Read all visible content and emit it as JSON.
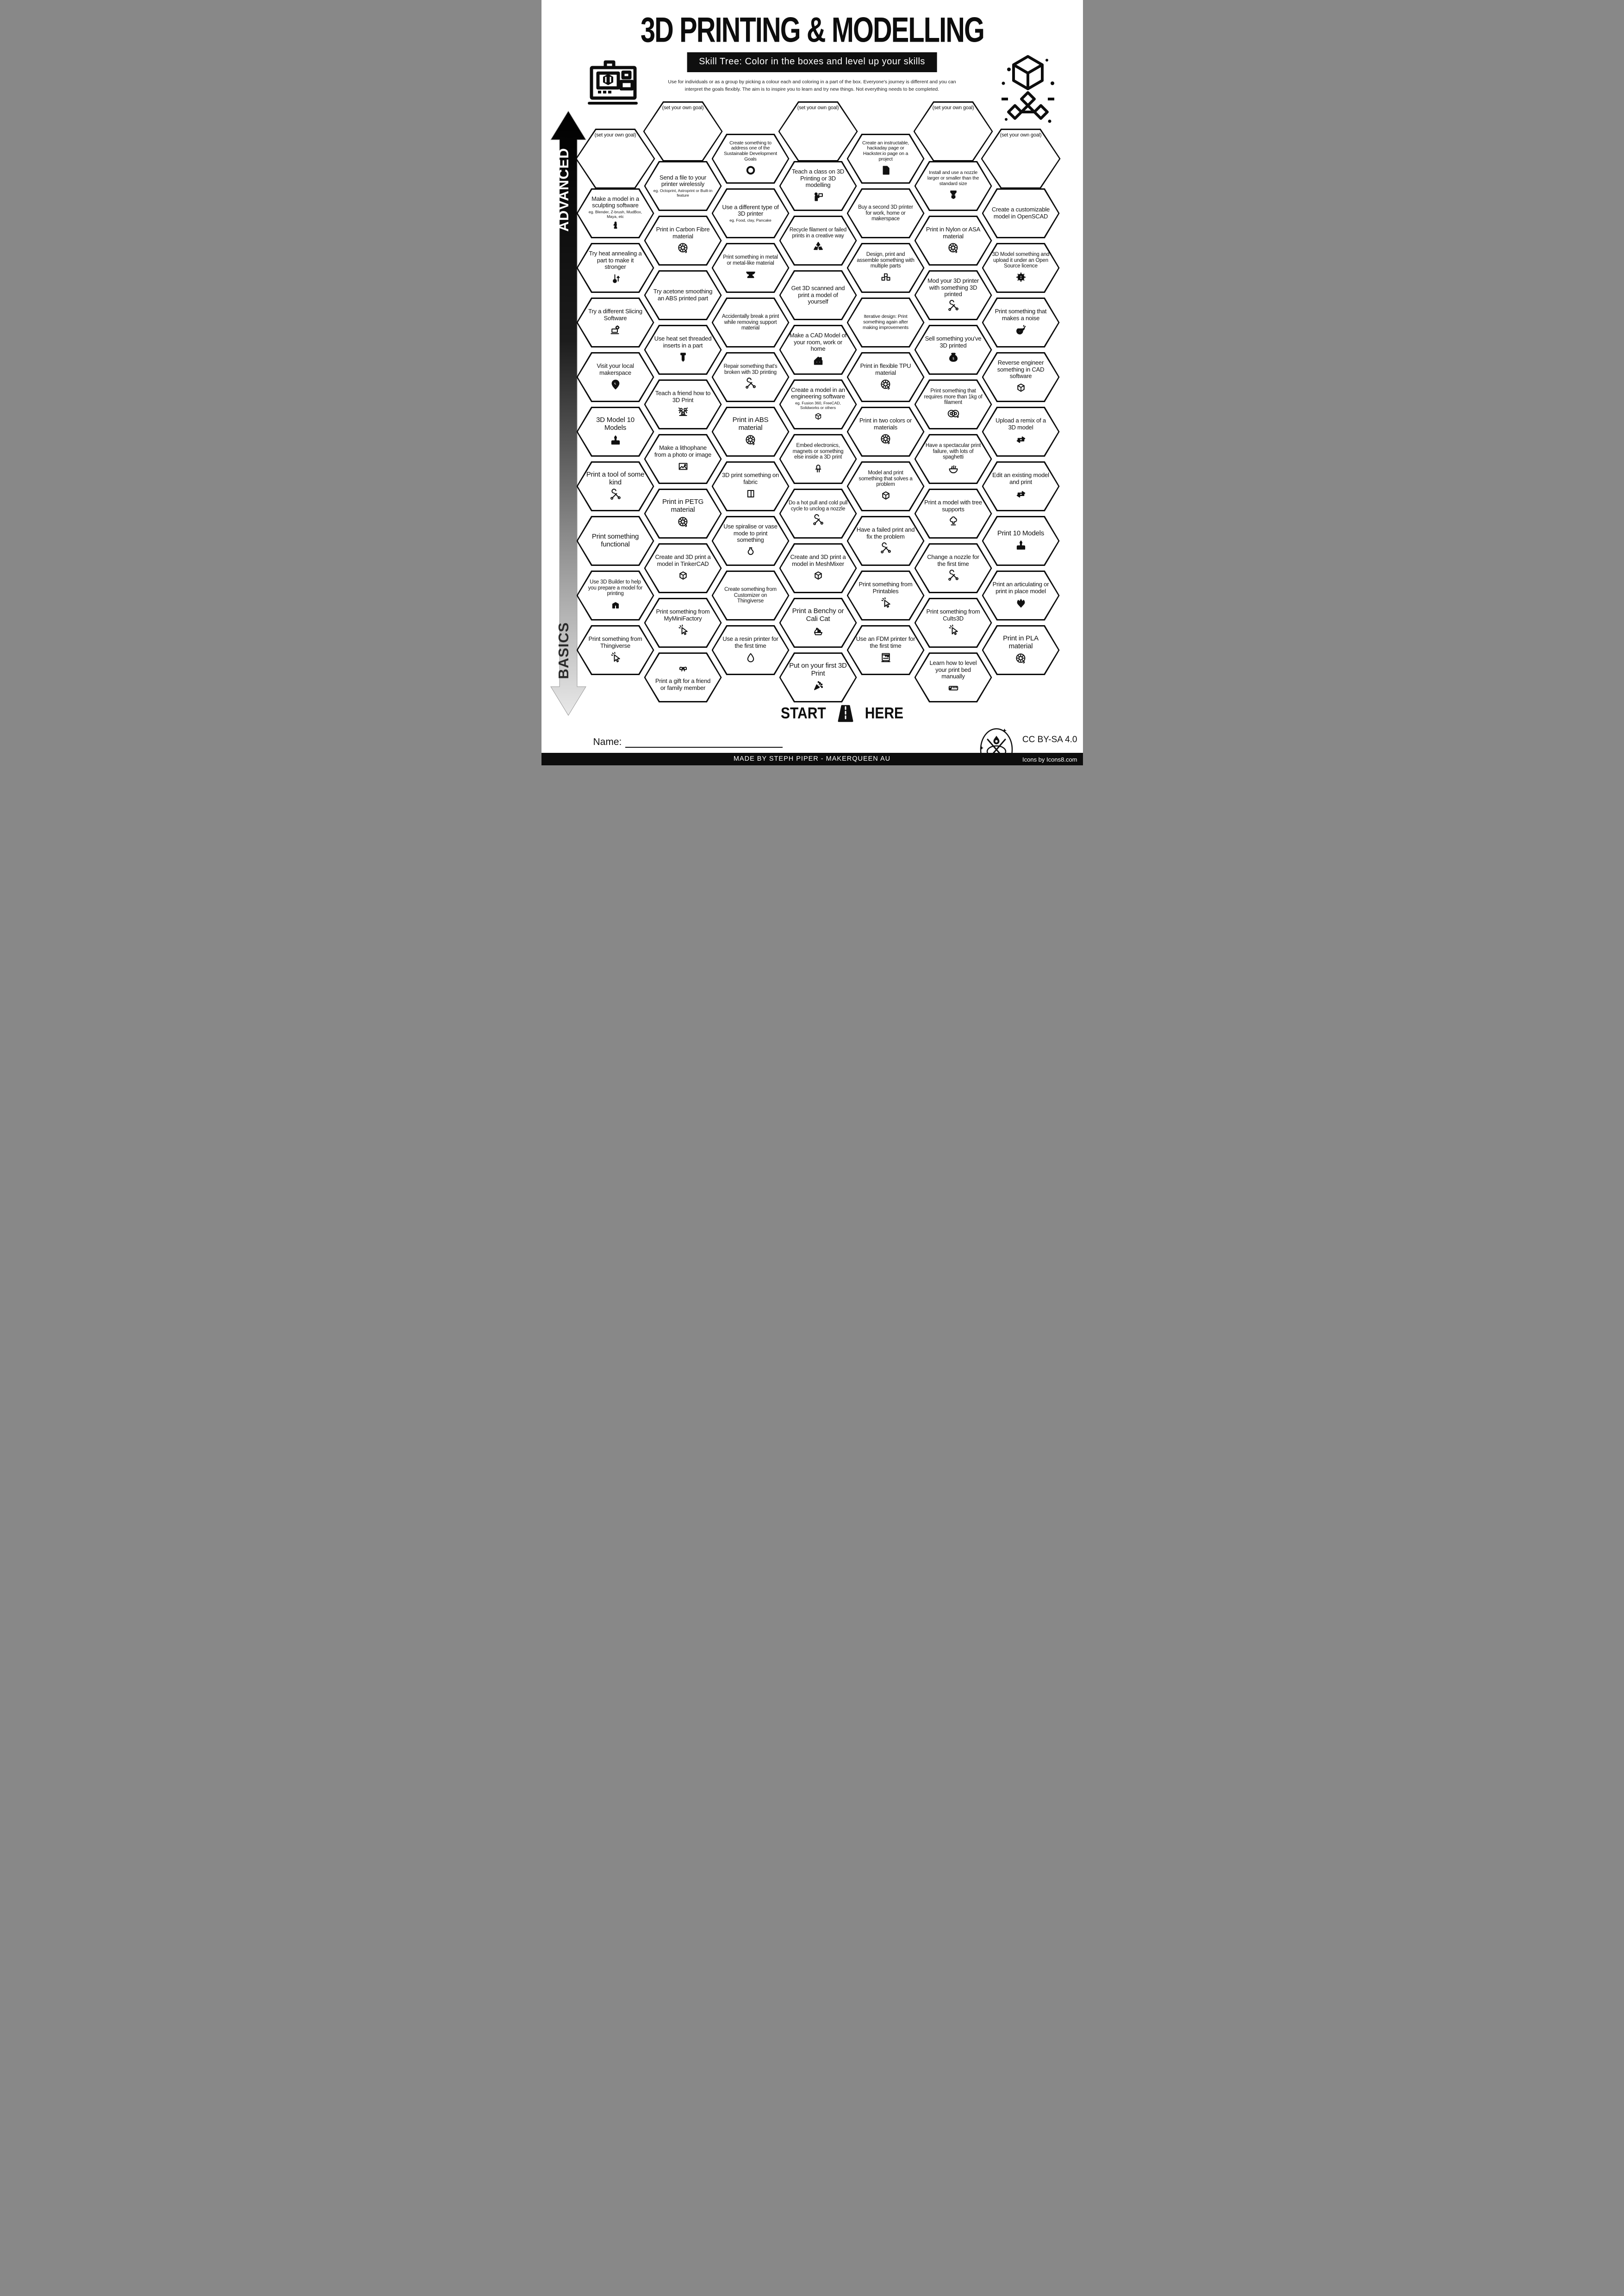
{
  "header": {
    "title": "3D PRINTING & MODELLING",
    "banner": "Skill Tree:  Color in the boxes and level up your skills",
    "desc1": "Use for individuals or as a group by picking a colour each and coloring in a part of the box.  Everyone's journey is different and you can",
    "desc2": "interpret the goals flexibly.  The aim is to inspire you to learn and try new things. Not everything needs to be completed."
  },
  "axis": {
    "top_label": "ADVANCED",
    "bottom_label": "BASICS"
  },
  "start": {
    "left": "START",
    "right": "HERE"
  },
  "name_label": "Name:",
  "footer": {
    "credit": "MADE BY STEPH PIPER  -  MAKERQUEEN AU",
    "license": "CC BY-SA 4.0",
    "icons_credit": "Icons by Icons8.com"
  },
  "colors": {
    "ink": "#0d0d0d",
    "paper": "#ffffff"
  },
  "columns": [
    {
      "cells": [
        {
          "label": "(set your own goal)",
          "goal": true
        },
        {
          "label": "Make a model in a sculpting software",
          "sub": "eg. Blender, Z-brush, MudBox, Maya, etc",
          "icon": "statue"
        },
        {
          "label": "Try heat annealing a part to make it stronger",
          "icon": "thermometer-up"
        },
        {
          "label": "Try a different Slicing Software",
          "icon": "laptop-gear"
        },
        {
          "label": "Visit your local makerspace",
          "icon": "map-pin"
        },
        {
          "label": "3D Model 10 Models",
          "icon": "cake"
        },
        {
          "label": "Print a tool of some kind",
          "icon": "tools"
        },
        {
          "label": "Print something functional"
        },
        {
          "label": "Use 3D Builder to help you prepare a model for printing",
          "icon": "builder-3d"
        },
        {
          "label": "Print something from Thingiverse",
          "icon": "cursor-click"
        }
      ]
    },
    {
      "cells": [
        {
          "label": "(set your own goal)",
          "goal": true
        },
        {
          "label": "Send a file to your printer wirelessly",
          "sub": "eg. Octoprint, Astroprint or Built-in feature"
        },
        {
          "label": "Print in Carbon Fibre material",
          "icon": "filament-spool"
        },
        {
          "label": "Try acetone smoothing an ABS printed part"
        },
        {
          "label": "Use heat set threaded inserts in a part",
          "icon": "screw"
        },
        {
          "label": "Teach a friend how to 3D Print",
          "icon": "people-laptop"
        },
        {
          "label": "Make a lithophane from a photo or image",
          "icon": "picture"
        },
        {
          "label": "Print in PETG material",
          "icon": "filament-spool"
        },
        {
          "label": "Create and 3D print a model in TinkerCAD",
          "icon": "cad-cube"
        },
        {
          "label": "Print something from MyMiniFactory",
          "icon": "cursor-click"
        },
        {
          "label": "Print a gift for a friend or family member",
          "icon": "gift-bow",
          "icon_pos": "top"
        }
      ]
    },
    {
      "cells": [
        {
          "label": "Create something to address one of the Sustainable Development Goals",
          "icon": "sdg-ring"
        },
        {
          "label": "Use a different type of 3D printer",
          "sub": "eg. Food, clay, Pancake"
        },
        {
          "label": "Print something in metal or metal-like material",
          "icon": "anvil"
        },
        {
          "label": "Accidentally break a print while removing support material"
        },
        {
          "label": "Repair something that's broken with 3D printing",
          "icon": "tools"
        },
        {
          "label": "Print in ABS material",
          "icon": "filament-spool"
        },
        {
          "label": "3D print something on fabric",
          "icon": "fabric"
        },
        {
          "label": "Use spiralise or vase mode to print something",
          "icon": "vase"
        },
        {
          "label": "Create something from Customizer on Thingiverse"
        },
        {
          "label": "Use a resin printer for the first time",
          "icon": "droplet"
        }
      ]
    },
    {
      "cells": [
        {
          "label": "(set your own goal)",
          "goal": true
        },
        {
          "label": "Teach a class on 3D Printing or 3D modelling",
          "icon": "teacher"
        },
        {
          "label": "Recycle filament or failed prints in a creative way",
          "icon": "recycle"
        },
        {
          "label": "Get 3D scanned and print a model of yourself"
        },
        {
          "label": "Make a CAD Model of your room, work or home",
          "icon": "house"
        },
        {
          "label": "Create a model in an engineering software",
          "sub": "eg. Fusion 360, FreeCAD, Solidworks or others",
          "icon": "cad-cube"
        },
        {
          "label": "Embed electronics, magnets or something else inside a 3D print",
          "icon": "led"
        },
        {
          "label": "Do a hot pull and cold pull cycle to unclog a nozzle",
          "icon": "tools"
        },
        {
          "label": "Create and 3D print a model in MeshMixer",
          "icon": "cad-cube"
        },
        {
          "label": "Print a Benchy or Cali Cat",
          "icon": "benchy"
        },
        {
          "label": "Put on your first 3D Print",
          "icon": "confetti"
        }
      ]
    },
    {
      "cells": [
        {
          "label": "Create an instructable, hackaday page or Hackster.io page on a project",
          "icon": "document-smile"
        },
        {
          "label": "Buy a second 3D printer for work, home or makerspace"
        },
        {
          "label": "Design, print and assemble something with multiple parts",
          "icon": "cubes-three"
        },
        {
          "label": "Iterative design: Print something again after making improvements"
        },
        {
          "label": "Print in flexible TPU material",
          "icon": "filament-spool"
        },
        {
          "label": "Print in two colors or materials",
          "icon": "filament-spool"
        },
        {
          "label": "Model and print something that solves a problem",
          "icon": "cad-cube"
        },
        {
          "label": "Have a failed print and fix the problem",
          "icon": "tools"
        },
        {
          "label": "Print something from Printables",
          "icon": "cursor-click"
        },
        {
          "label": "Use an FDM printer for the first time",
          "icon": "fdm-printer"
        }
      ]
    },
    {
      "cells": [
        {
          "label": "(set your own goal)",
          "goal": true
        },
        {
          "label": "Install and use a nozzle larger or smaller than the standard size",
          "icon": "nozzle"
        },
        {
          "label": "Print in Nylon or ASA material",
          "icon": "filament-spool"
        },
        {
          "label": "Mod your 3D printer with something 3D printed",
          "icon": "tools"
        },
        {
          "label": "Sell something you've 3D printed",
          "icon": "money-bag"
        },
        {
          "label": "Print something that requires more than 1kg of filament",
          "icon": "filament-spool-double"
        },
        {
          "label": "Have a spectacular print failure, with lots of spaghetti",
          "icon": "spaghetti"
        },
        {
          "label": "Print a model with tree supports",
          "icon": "tree"
        },
        {
          "label": "Change a nozzle for the first time",
          "icon": "tools"
        },
        {
          "label": "Print something from Cults3D",
          "icon": "cursor-click"
        },
        {
          "label": "Learn how to level your print bed manually",
          "icon": "ruler"
        }
      ]
    },
    {
      "cells": [
        {
          "label": "(set your own goal)",
          "goal": true
        },
        {
          "label": "Create a customizable model in OpenSCAD"
        },
        {
          "label": "3D Model something and upload it under an Open Source licence",
          "icon": "open-source-gear"
        },
        {
          "label": "Print something that makes a noise",
          "icon": "whistle"
        },
        {
          "label": "Reverse engineer something in CAD software",
          "icon": "cad-cube"
        },
        {
          "label": "Upload a remix of a 3D model",
          "icon": "remix-arrows"
        },
        {
          "label": "Edit an existing model and print",
          "icon": "remix-arrows"
        },
        {
          "label": "Print 10 Models",
          "icon": "cake"
        },
        {
          "label": "Print an articulating or print in place model",
          "icon": "dragon"
        },
        {
          "label": "Print in PLA material",
          "icon": "filament-spool"
        }
      ]
    }
  ]
}
